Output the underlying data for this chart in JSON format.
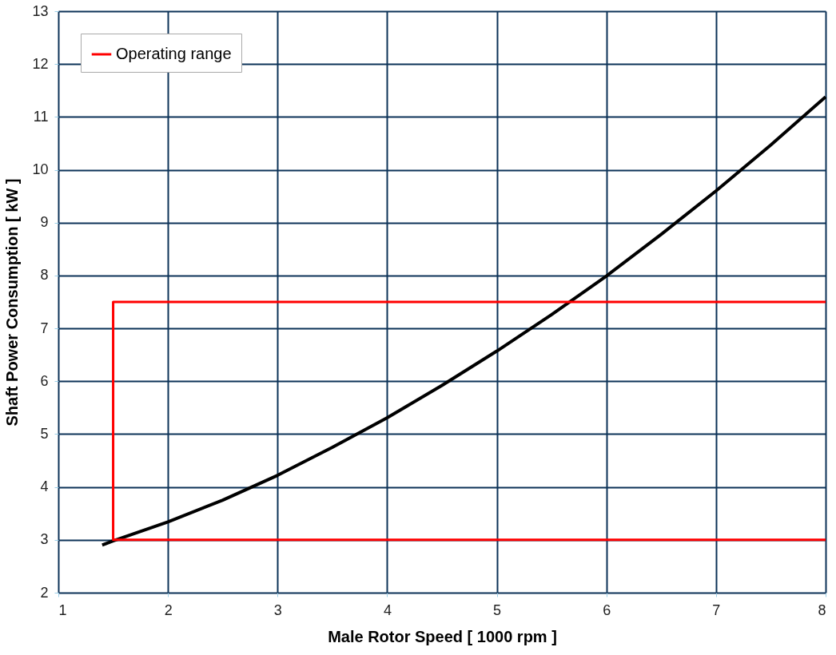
{
  "chart_data": {
    "type": "line",
    "xlabel": "Male Rotor Speed  [ 1000 rpm ]",
    "ylabel": "Shaft Power Consumption  [ kW ]",
    "xlim": [
      1,
      8
    ],
    "xticks": [
      1,
      2,
      3,
      4,
      5,
      6,
      7,
      8
    ],
    "ylim": [
      2,
      13
    ],
    "yticks": [
      2,
      3,
      4,
      5,
      6,
      7,
      8,
      9,
      10,
      11,
      12,
      13
    ],
    "grid": true,
    "legend": "top left",
    "marker": "none",
    "line_style": "solid",
    "series": [
      {
        "color": "#000000",
        "x": [
          1.4,
          1.5,
          2,
          2.5,
          3,
          3.5,
          4,
          4.5,
          5,
          5.5,
          6,
          6.5,
          7,
          7.5,
          8
        ],
        "values": [
          2.9,
          2.98,
          3.34,
          3.75,
          4.22,
          4.75,
          5.31,
          5.92,
          6.57,
          7.26,
          7.99,
          8.78,
          9.6,
          10.47,
          11.38
        ]
      },
      {
        "name": "Operating range",
        "color": "#ff0000",
        "x": [
          8,
          1.5,
          1.5,
          8
        ],
        "values": [
          7.5,
          7.5,
          3,
          3
        ]
      }
    ]
  }
}
